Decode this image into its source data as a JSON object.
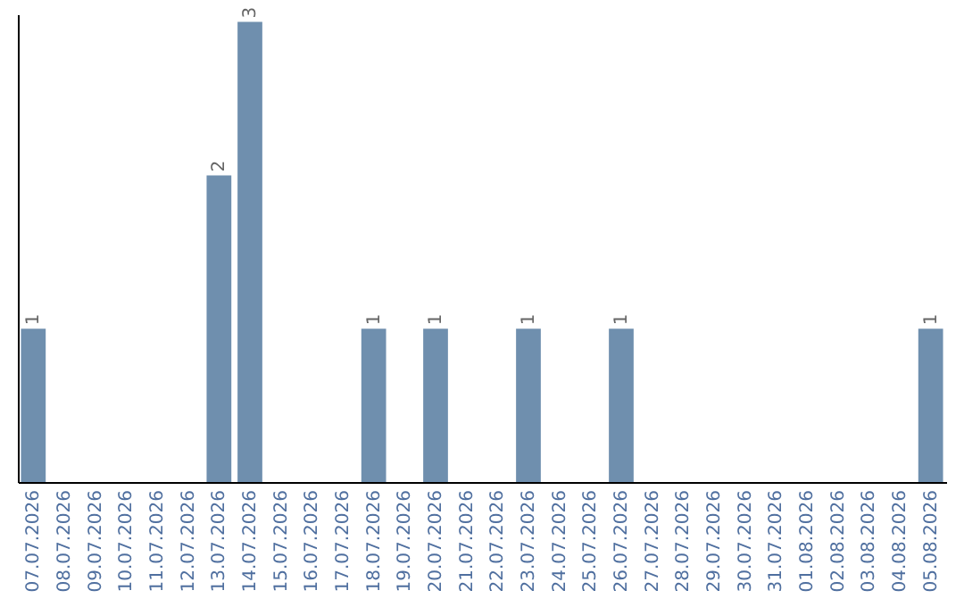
{
  "chart_data": {
    "type": "bar",
    "categories": [
      "07.07.2026",
      "08.07.2026",
      "09.07.2026",
      "10.07.2026",
      "11.07.2026",
      "12.07.2026",
      "13.07.2026",
      "14.07.2026",
      "15.07.2026",
      "16.07.2026",
      "17.07.2026",
      "18.07.2026",
      "19.07.2026",
      "20.07.2026",
      "21.07.2026",
      "22.07.2026",
      "23.07.2026",
      "24.07.2026",
      "25.07.2026",
      "26.07.2026",
      "27.07.2026",
      "28.07.2026",
      "29.07.2026",
      "30.07.2026",
      "31.07.2026",
      "01.08.2026",
      "02.08.2026",
      "03.08.2026",
      "04.08.2026",
      "05.08.2026"
    ],
    "values": [
      1,
      0,
      0,
      0,
      0,
      0,
      2,
      3,
      0,
      0,
      0,
      1,
      0,
      1,
      0,
      0,
      1,
      0,
      0,
      1,
      0,
      0,
      0,
      0,
      0,
      0,
      0,
      0,
      0,
      1
    ],
    "value_labels": [
      "1",
      null,
      null,
      null,
      null,
      null,
      "2",
      "3",
      null,
      null,
      null,
      "1",
      null,
      "1",
      null,
      null,
      "1",
      null,
      null,
      "1",
      null,
      null,
      null,
      null,
      null,
      null,
      null,
      null,
      null,
      "1"
    ],
    "color": "#6f8fae",
    "ylim": [
      0,
      3.05
    ],
    "tick_labels": "x"
  }
}
